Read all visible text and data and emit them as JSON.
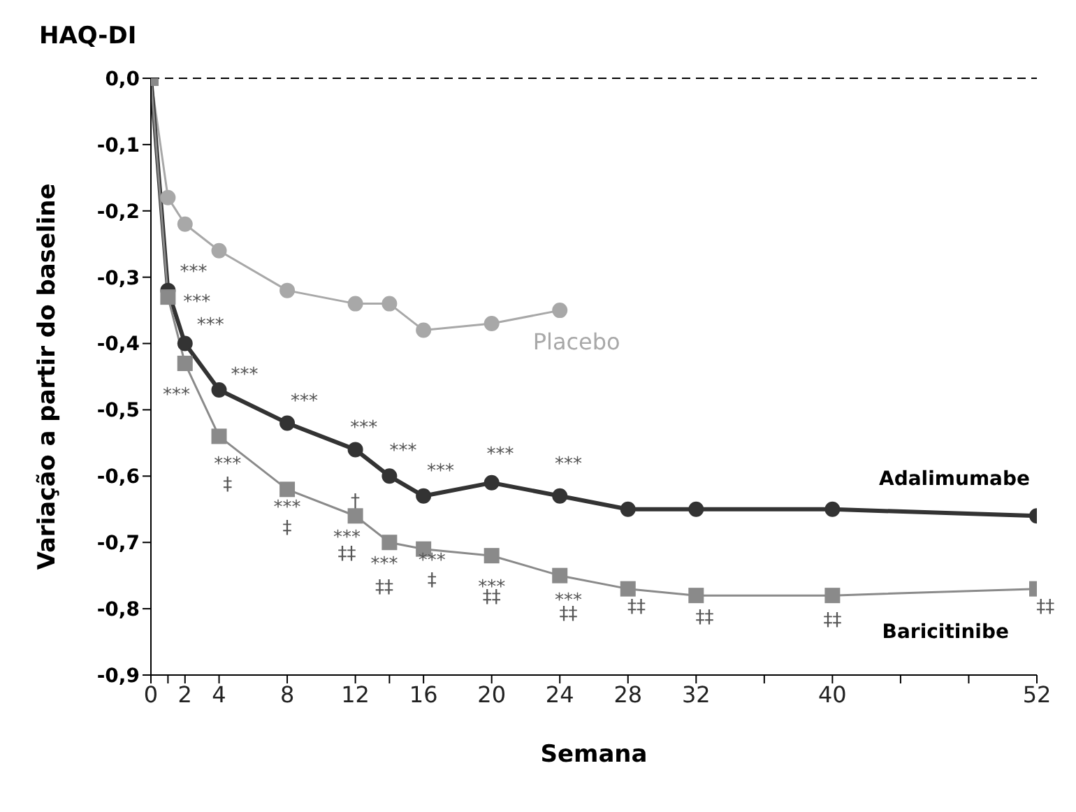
{
  "chart_data": {
    "type": "line",
    "title": "HAQ-DI",
    "xlabel": "Semana",
    "ylabel": "Variação a partir do baseline",
    "xlim": [
      0,
      52
    ],
    "ylim": [
      -0.9,
      0
    ],
    "xticks": [
      0,
      {
        "value": 1,
        "label": null
      },
      2,
      4,
      8,
      12,
      {
        "value": 14,
        "label": null
      },
      16,
      20,
      24,
      28,
      32,
      {
        "value": 36,
        "label": null
      },
      40,
      {
        "value": 44,
        "label": null
      },
      {
        "value": 48,
        "label": null
      },
      52
    ],
    "yticks": [
      {
        "value": 0,
        "label": "0,0"
      },
      {
        "value": -0.1,
        "label": "-0,1"
      },
      {
        "value": -0.2,
        "label": "-0,2"
      },
      {
        "value": -0.3,
        "label": "-0,3"
      },
      {
        "value": -0.4,
        "label": "-0,4"
      },
      {
        "value": -0.5,
        "label": "-0,5"
      },
      {
        "value": -0.6,
        "label": "-0,6"
      },
      {
        "value": -0.7,
        "label": "-0,7"
      },
      {
        "value": -0.8,
        "label": "-0,8"
      },
      {
        "value": -0.9,
        "label": "-0,9"
      }
    ],
    "line_style": "solid",
    "series": [
      {
        "name": "Placebo",
        "color": "#a8a8a8",
        "marker": "circle",
        "x": [
          0,
          1,
          2,
          4,
          8,
          12,
          14,
          16,
          20,
          24
        ],
        "values": [
          0,
          -0.18,
          -0.22,
          -0.26,
          -0.32,
          -0.34,
          -0.34,
          -0.38,
          -0.37,
          -0.35
        ]
      },
      {
        "name": "Adalimumabe",
        "color": "#333333",
        "marker": "circle",
        "x": [
          0,
          1,
          2,
          4,
          8,
          12,
          14,
          16,
          20,
          24,
          28,
          32,
          40,
          52
        ],
        "values": [
          0,
          -0.32,
          -0.4,
          -0.47,
          -0.52,
          -0.56,
          -0.6,
          -0.63,
          -0.61,
          -0.63,
          -0.65,
          -0.65,
          -0.65,
          -0.66
        ]
      },
      {
        "name": "Baricitinibe",
        "color": "#8a8a8a",
        "marker": "square",
        "x": [
          0,
          1,
          2,
          4,
          8,
          12,
          14,
          16,
          20,
          24,
          28,
          32,
          40,
          52
        ],
        "values": [
          0,
          -0.33,
          -0.43,
          -0.54,
          -0.62,
          -0.66,
          -0.7,
          -0.71,
          -0.72,
          -0.75,
          -0.77,
          -0.78,
          -0.78,
          -0.77
        ]
      }
    ],
    "ref_lines": [
      {
        "axis": "y",
        "value": 0,
        "label": null,
        "color": "#000000",
        "line_style": "dashed"
      }
    ],
    "annotations": [
      "***",
      "***",
      "***",
      "***",
      "***",
      "***",
      "***",
      "***",
      "***",
      "***",
      "***",
      "***",
      "‡",
      "***",
      "‡",
      "†",
      "***",
      "‡‡",
      "***",
      "‡‡",
      "***",
      "‡",
      "***",
      "‡‡",
      "***",
      "‡‡",
      "‡‡",
      "‡‡",
      "‡‡",
      "‡‡"
    ]
  }
}
